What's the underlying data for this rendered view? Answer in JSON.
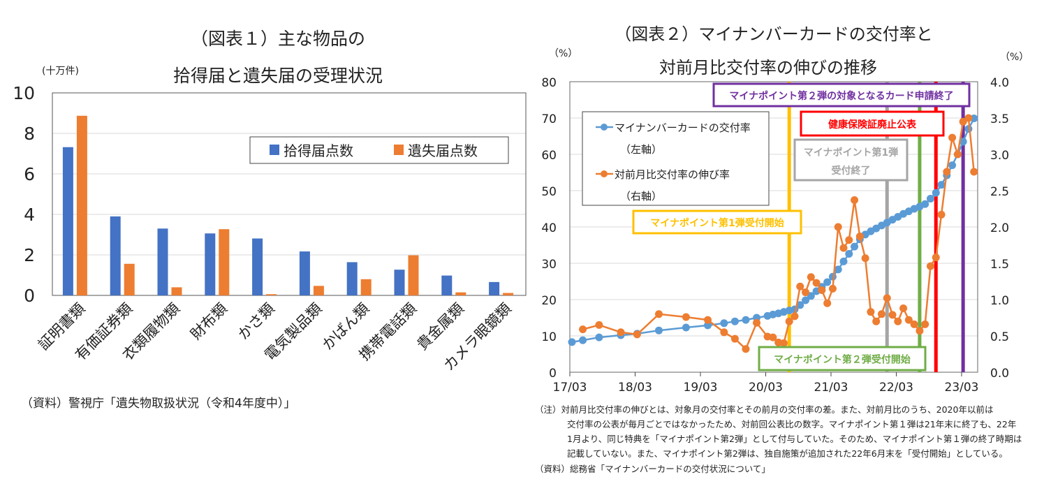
{
  "chart_data": [
    {
      "type": "bar",
      "title": [
        "（図表１）主な物品の",
        "拾得届と遺失届の受理状況"
      ],
      "ylabel": "(十万件)",
      "ylim": [
        0,
        10
      ],
      "yticks": [
        "0",
        "2",
        "4",
        "6",
        "8",
        "10"
      ],
      "grid": true,
      "legend_position": "top-right",
      "categories": [
        "証明書類",
        "有価証券類",
        "衣類履物類",
        "財布類",
        "かさ類",
        "電気製品類",
        "かばん類",
        "携帯電話類",
        "貴金属類",
        "カメラ眼鏡類"
      ],
      "series": [
        {
          "name": "拾得届点数",
          "color": "#4472c4",
          "values": [
            7.32,
            3.9,
            3.3,
            3.06,
            2.81,
            2.17,
            1.64,
            1.27,
            0.98,
            0.66
          ]
        },
        {
          "name": "遺失届点数",
          "color": "#ed7d31",
          "values": [
            8.87,
            1.56,
            0.4,
            3.27,
            0.06,
            0.47,
            0.8,
            1.98,
            0.15,
            0.12
          ]
        }
      ],
      "source": "（資料）警視庁「遺失物取扱状況（令和4年度中）」"
    },
    {
      "type": "line",
      "title": [
        "（図表２）マイナンバーカードの交付率と",
        "対前月比交付率の伸びの推移"
      ],
      "ylabel_left": "（%）",
      "ylabel_right": "（%）",
      "ylim_left": [
        0,
        80
      ],
      "ylim_right": [
        0,
        4
      ],
      "yticks_left": [
        "0",
        "10",
        "20",
        "30",
        "40",
        "50",
        "60",
        "70",
        "80"
      ],
      "yticks_right": [
        "0.0",
        "0.5",
        "1.0",
        "1.5",
        "2.0",
        "2.5",
        "3.0",
        "3.5",
        "4.0"
      ],
      "xticks": [
        "17/03",
        "18/03",
        "19/03",
        "20/03",
        "21/03",
        "22/03",
        "23/03"
      ],
      "grid": true,
      "legend_position": "top-left",
      "series": [
        {
          "name": "マイナンバーカードの交付率",
          "name_sub": "（左軸）",
          "axis": "left",
          "color": "#5b9bd5",
          "points": [
            [
              "2017-03",
              8.3
            ],
            [
              "2017-05",
              8.8
            ],
            [
              "2017-08",
              9.6
            ],
            [
              "2017-12",
              10.2
            ],
            [
              "2018-03",
              10.6
            ],
            [
              "2018-07",
              11.5
            ],
            [
              "2018-12",
              12.3
            ],
            [
              "2019-04",
              12.9
            ],
            [
              "2019-07",
              13.5
            ],
            [
              "2019-09",
              14.0
            ],
            [
              "2019-11",
              14.4
            ],
            [
              "2020-01",
              15.0
            ],
            [
              "2020-03",
              15.5
            ],
            [
              "2020-04",
              15.9
            ],
            [
              "2020-05",
              16.2
            ],
            [
              "2020-06",
              16.6
            ],
            [
              "2020-07",
              17.0
            ],
            [
              "2020-08",
              17.3
            ],
            [
              "2020-09",
              18.5
            ],
            [
              "2020-10",
              19.8
            ],
            [
              "2020-11",
              21.0
            ],
            [
              "2020-12",
              22.3
            ],
            [
              "2021-01",
              23.5
            ],
            [
              "2021-02",
              24.8
            ],
            [
              "2021-03",
              26.3
            ],
            [
              "2021-04",
              28.3
            ],
            [
              "2021-05",
              30.5
            ],
            [
              "2021-06",
              32.6
            ],
            [
              "2021-07",
              34.6
            ],
            [
              "2021-08",
              36.6
            ],
            [
              "2021-09",
              37.9
            ],
            [
              "2021-10",
              38.8
            ],
            [
              "2021-11",
              39.6
            ],
            [
              "2021-12",
              40.4
            ],
            [
              "2022-01",
              41.2
            ],
            [
              "2022-02",
              42.0
            ],
            [
              "2022-03",
              42.8
            ],
            [
              "2022-04",
              43.6
            ],
            [
              "2022-05",
              44.3
            ],
            [
              "2022-06",
              45.0
            ],
            [
              "2022-07",
              45.6
            ],
            [
              "2022-08",
              46.3
            ],
            [
              "2022-09",
              47.8
            ],
            [
              "2022-10",
              49.4
            ],
            [
              "2022-11",
              51.6
            ],
            [
              "2022-12",
              54.2
            ],
            [
              "2023-01",
              57.0
            ],
            [
              "2023-02",
              60.0
            ],
            [
              "2023-03",
              63.5
            ],
            [
              "2023-04",
              67.0
            ],
            [
              "2023-05",
              69.9
            ]
          ]
        },
        {
          "name": "対前月比交付率の伸び率",
          "name_sub": "（右軸）",
          "axis": "right",
          "color": "#ed7d31",
          "points": [
            [
              "2017-05",
              0.59
            ],
            [
              "2017-08",
              0.65
            ],
            [
              "2017-12",
              0.55
            ],
            [
              "2018-03",
              0.52
            ],
            [
              "2018-07",
              0.8
            ],
            [
              "2018-12",
              0.76
            ],
            [
              "2019-04",
              0.72
            ],
            [
              "2019-07",
              0.55
            ],
            [
              "2019-09",
              0.46
            ],
            [
              "2019-11",
              0.32
            ],
            [
              "2020-01",
              0.68
            ],
            [
              "2020-03",
              0.49
            ],
            [
              "2020-04",
              0.48
            ],
            [
              "2020-05",
              0.41
            ],
            [
              "2020-06",
              0.4
            ],
            [
              "2020-07",
              0.7
            ],
            [
              "2020-08",
              0.77
            ],
            [
              "2020-09",
              1.18
            ],
            [
              "2020-10",
              1.1
            ],
            [
              "2020-11",
              1.31
            ],
            [
              "2020-12",
              1.23
            ],
            [
              "2021-01",
              1.13
            ],
            [
              "2021-02",
              0.95
            ],
            [
              "2021-03",
              1.15
            ],
            [
              "2021-04",
              2.0
            ],
            [
              "2021-05",
              1.71
            ],
            [
              "2021-06",
              1.82
            ],
            [
              "2021-07",
              2.37
            ],
            [
              "2021-08",
              1.87
            ],
            [
              "2021-09",
              1.57
            ],
            [
              "2021-10",
              0.83
            ],
            [
              "2021-11",
              0.7
            ],
            [
              "2021-12",
              0.8
            ],
            [
              "2022-01",
              1.02
            ],
            [
              "2022-02",
              0.79
            ],
            [
              "2022-03",
              0.7
            ],
            [
              "2022-04",
              0.88
            ],
            [
              "2022-05",
              0.72
            ],
            [
              "2022-06",
              0.66
            ],
            [
              "2022-07",
              0.57
            ],
            [
              "2022-08",
              0.66
            ],
            [
              "2022-09",
              1.46
            ],
            [
              "2022-10",
              1.58
            ],
            [
              "2022-11",
              2.17
            ],
            [
              "2022-12",
              2.76
            ],
            [
              "2023-01",
              3.23
            ],
            [
              "2023-02",
              3.0
            ],
            [
              "2023-03",
              3.45
            ],
            [
              "2023-04",
              3.5
            ],
            [
              "2023-05",
              2.76
            ]
          ]
        }
      ],
      "events": [
        {
          "date": "2020-07",
          "color": "#ffc000",
          "label": [
            "マイナポイント第1弾受付開始"
          ]
        },
        {
          "date": "2022-01",
          "color": "#a5a5a5",
          "label": [
            "マイナポイント第1弾",
            "受付終了"
          ]
        },
        {
          "date": "2022-07",
          "color": "#70ad47",
          "label": [
            "マイナポイント第２弾受付開始"
          ]
        },
        {
          "date": "2022-10",
          "color": "#ff0000",
          "label": [
            "健康保険証廃止公表"
          ]
        },
        {
          "date": "2023-03",
          "color": "#7030a0",
          "label": [
            "マイナポイント第２弾の対象となるカード申請終了"
          ]
        }
      ],
      "notes": [
        "（注）対前月比交付率の伸びとは、対象月の交付率とその前月の交付率の差。また、対前月比のうち、2020年以前は",
        "交付率の公表が毎月ごとではなかったため、対前回公表比の数字。マイナポイント第１弾は21年末に終了も、22年",
        "1月より、同じ特典を「マイナポイント第2弾」として付与していた。そのため、マイナポイント第１弾の終了時期は",
        "記載していない。また、マイナポイント第2弾は、独自施策が追加された22年6月末を「受付開始」としている。"
      ],
      "source": "（資料）総務省「マイナンバーカードの交付状況について」"
    }
  ]
}
